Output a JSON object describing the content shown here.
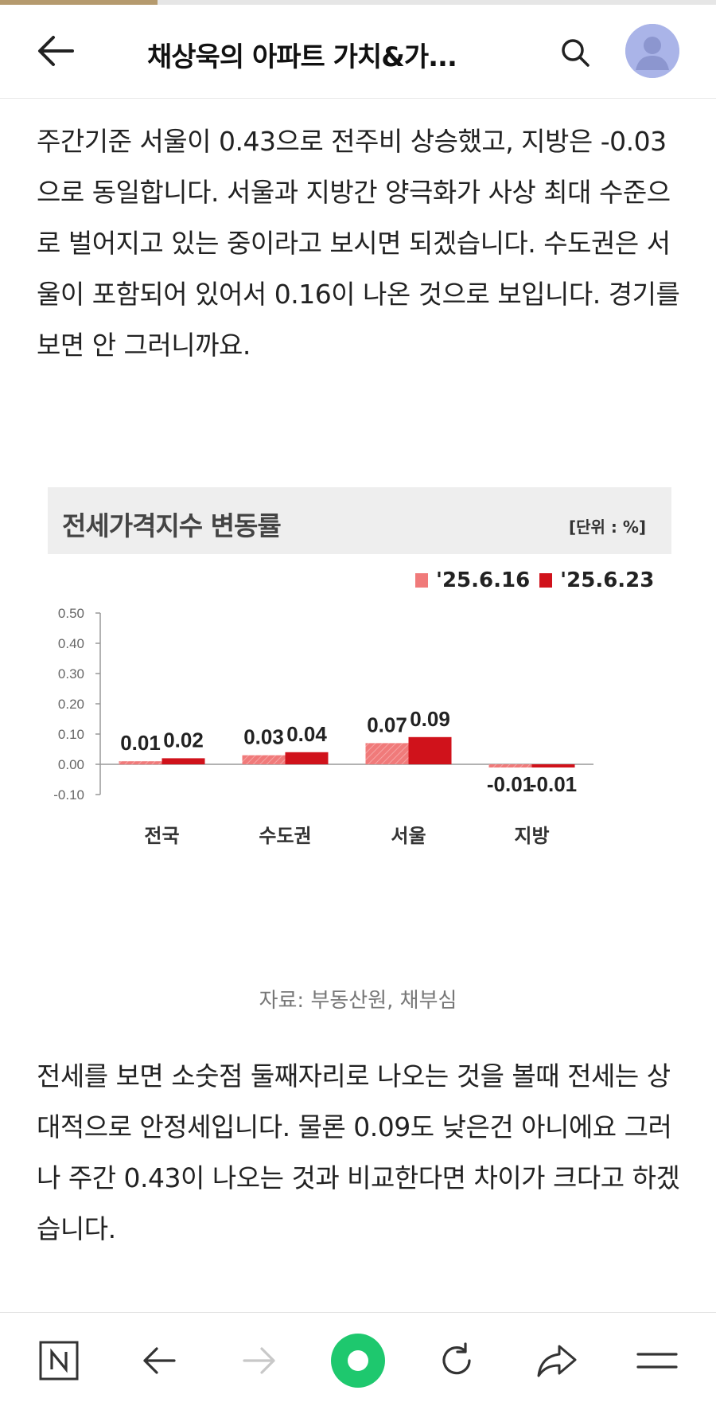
{
  "reading_progress": 0.22,
  "header": {
    "title": "채상욱의 아파트 가치&가...",
    "back_icon": "arrow-left-icon",
    "search_icon": "search-icon",
    "avatar_icon": "user-avatar-icon"
  },
  "article": {
    "paragraph_1": "주간기준 서울이 0.43으로 전주비 상승했고, 지방은 -0.03으로 동일합니다. 서울과 지방간 양극화가 사상 최대 수준으로 벌어지고 있는 중이라고 보시면 되겠습니다. 수도권은 서울이 포함되어 있어서 0.16이 나온 것으로 보입니다. 경기를 보면 안 그러니까요.",
    "caption": "자료: 부동산원, 채부심",
    "paragraph_2": "전세를 보면 소숫점 둘째자리로 나오는 것을 볼때 전세는 상대적으로 안정세입니다. 물론 0.09도 낮은건 아니에요 그러나 주간 0.43이 나오는 것과 비교한다면 차이가 크다고 하겠습니다."
  },
  "chart_data": {
    "type": "bar",
    "title": "전세가격지수 변동률",
    "unit": "[단위 : %]",
    "categories": [
      "전국",
      "수도권",
      "서울",
      "지방"
    ],
    "series": [
      {
        "name": "'25.6.16",
        "values": [
          0.01,
          0.03,
          0.07,
          -0.01
        ],
        "color": "#f07a7a",
        "value_labels": [
          "0.01",
          "0.03",
          "0.07",
          "-0.01"
        ]
      },
      {
        "name": "'25.6.23",
        "values": [
          0.02,
          0.04,
          0.09,
          -0.01
        ],
        "color": "#d0121b",
        "value_labels": [
          "0.02",
          "0.04",
          "0.09",
          "-0.01"
        ]
      }
    ],
    "yticks": [
      "0.50",
      "0.40",
      "0.30",
      "0.20",
      "0.10",
      "0.00",
      "-0.10"
    ],
    "ylim": [
      -0.1,
      0.5
    ],
    "grid": false,
    "legend_position": "top-right"
  },
  "bottom_nav": {
    "home_icon": "naver-n-icon",
    "back_icon": "arrow-left-icon",
    "forward_icon": "arrow-right-icon",
    "center_icon": "green-circle-icon",
    "refresh_icon": "refresh-icon",
    "share_icon": "share-icon",
    "menu_icon": "hamburger-menu-icon"
  },
  "colors": {
    "accent_progress": "#b59a6e",
    "series_1": "#f07a7a",
    "series_2": "#d0121b",
    "green_button": "#1ec86e"
  }
}
